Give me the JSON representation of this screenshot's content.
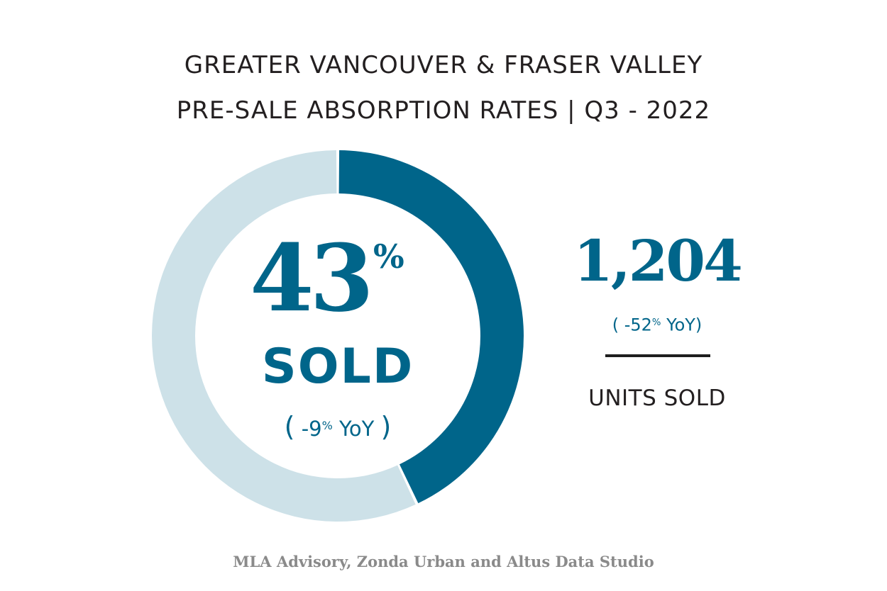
{
  "title": {
    "line1": "GREATER VANCOUVER & FRASER VALLEY",
    "line2": "PRE-SALE ABSORPTION RATES | Q3 - 2022"
  },
  "colors": {
    "sold": "#00658a",
    "remaining": "#cde1e8",
    "title": "#231f20",
    "source": "#8a8a8a"
  },
  "chart_data": {
    "type": "pie",
    "title": "GREATER VANCOUVER & FRASER VALLEY PRE-SALE ABSORPTION RATES | Q3 - 2022",
    "slices": [
      {
        "label": "SOLD",
        "value": 43,
        "color": "#00658a"
      },
      {
        "label": "",
        "value": 57,
        "color": "#cde1e8"
      }
    ]
  },
  "center": {
    "value": "43",
    "unit": "%",
    "label": "SOLD",
    "yoy_open": "(",
    "yoy_value": "-9",
    "yoy_unit": "%",
    "yoy_suffix": "YoY",
    "yoy_close": ")"
  },
  "units": {
    "value": "1,204",
    "yoy_prefix": "( -52",
    "yoy_unit": "%",
    "yoy_suffix": "YoY)",
    "label": "UNITS SOLD"
  },
  "source": "MLA Advisory, Zonda Urban and Altus Data Studio"
}
